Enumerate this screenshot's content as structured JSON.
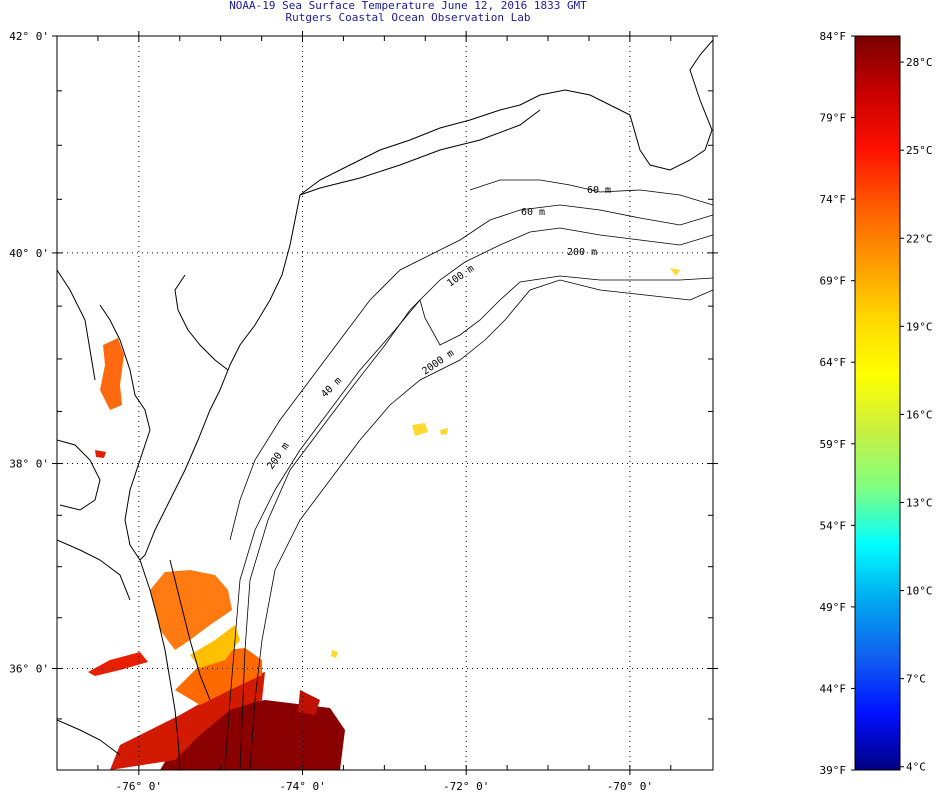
{
  "header": {
    "title": "NOAA-19 Sea Surface Temperature June 12, 2016 1833 GMT",
    "subtitle": "Rutgers Coastal Ocean Observation Lab"
  },
  "map": {
    "lat_ticks": [
      {
        "value": 42,
        "label": "42° 0'"
      },
      {
        "value": 40,
        "label": "40° 0'"
      },
      {
        "value": 38,
        "label": "38° 0'"
      },
      {
        "value": 36,
        "label": "36° 0'"
      }
    ],
    "lon_ticks": [
      {
        "value": -76,
        "label": "-76° 0'"
      },
      {
        "value": -74,
        "label": "-74° 0'"
      },
      {
        "value": -72,
        "label": "-72° 0'"
      },
      {
        "value": -70,
        "label": "-70° 0'"
      }
    ],
    "lat_range": [
      35.03,
      42
    ],
    "lon_range": [
      -77,
      -69.05
    ],
    "contour_labels": [
      "60 m",
      "60 m",
      "200 m",
      "100 m",
      "2000 m",
      "40 m",
      "200 m"
    ]
  },
  "colorbar": {
    "range_f": [
      39,
      84
    ],
    "fahrenheit_labels": [
      {
        "value": 84,
        "label": "84°F"
      },
      {
        "value": 79,
        "label": "79°F"
      },
      {
        "value": 74,
        "label": "74°F"
      },
      {
        "value": 69,
        "label": "69°F"
      },
      {
        "value": 64,
        "label": "64°F"
      },
      {
        "value": 59,
        "label": "59°F"
      },
      {
        "value": 54,
        "label": "54°F"
      },
      {
        "value": 49,
        "label": "49°F"
      },
      {
        "value": 44,
        "label": "44°F"
      },
      {
        "value": 39,
        "label": "39°F"
      }
    ],
    "celsius_labels": [
      {
        "value": 28,
        "label": "28°C"
      },
      {
        "value": 25,
        "label": "25°C"
      },
      {
        "value": 22,
        "label": "22°C"
      },
      {
        "value": 19,
        "label": "19°C"
      },
      {
        "value": 16,
        "label": "16°C"
      },
      {
        "value": 13,
        "label": "13°C"
      },
      {
        "value": 10,
        "label": "10°C"
      },
      {
        "value": 7,
        "label": "7°C"
      },
      {
        "value": 4,
        "label": "4°C"
      }
    ],
    "colors": [
      "#780000",
      "#c80000",
      "#ff1000",
      "#ff5a00",
      "#ff9a00",
      "#ffd800",
      "#ffff00",
      "#c8f040",
      "#80ff80",
      "#00ffff",
      "#00a8f0",
      "#1060f0",
      "#0010ff",
      "#000080"
    ]
  }
}
